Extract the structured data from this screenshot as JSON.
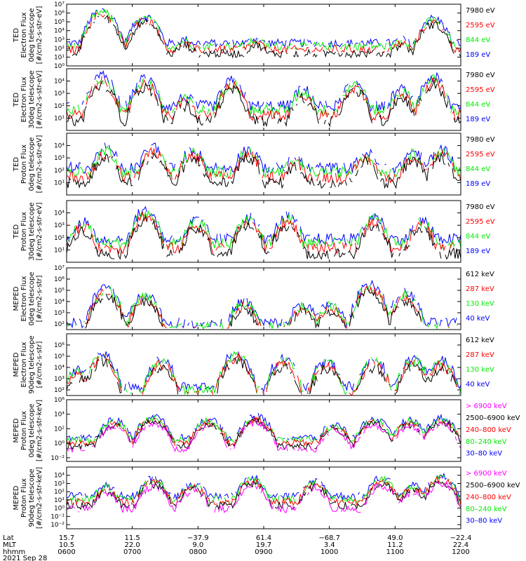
{
  "palette": {
    "blue": "#0000ff",
    "red": "#ff0000",
    "green": "#00ee00",
    "black": "#000000",
    "magenta": "#ff00ff"
  },
  "chart_data": {
    "type": "line",
    "date_label": "2021 Sep 28",
    "x_row_labels": [
      "Lat",
      "MLT",
      "hhmm"
    ],
    "x_ticks": [
      {
        "lat": "15.7",
        "mlt": "10.5",
        "hhmm": "0600"
      },
      {
        "lat": "11.5",
        "mlt": "22.0",
        "hhmm": "0700"
      },
      {
        "lat": "−37.9",
        "mlt": "9.0",
        "hhmm": "0800"
      },
      {
        "lat": "61.4",
        "mlt": "19.7",
        "hhmm": "0900"
      },
      {
        "lat": "−68.7",
        "mlt": "3.4",
        "hhmm": "1000"
      },
      {
        "lat": "49.0",
        "mlt": "11.2",
        "hhmm": "1100"
      },
      {
        "lat": "−22.4",
        "mlt": "22.4",
        "hhmm": "1200"
      }
    ],
    "panels": [
      {
        "ylabel": [
          "TED",
          "Electron Flux",
          "0deg telescope",
          "[#/cm2-s-str-eV]"
        ],
        "ylim": [
          0,
          7
        ],
        "yticks": [
          "10⁰",
          "10¹",
          "10²",
          "10³",
          "10⁴",
          "10⁵",
          "10⁶",
          "10⁷"
        ],
        "ytick_exps": [
          0,
          1,
          2,
          3,
          4,
          5,
          6,
          7
        ],
        "legend": [
          {
            "label": "7980 eV",
            "color": "#000000"
          },
          {
            "label": "2595 eV",
            "color": "#ff0000"
          },
          {
            "label": "844 eV",
            "color": "#00ee00"
          },
          {
            "label": "189 eV",
            "color": "#0000ff"
          }
        ],
        "baseline": 2.6,
        "peaks": [
          [
            0.09,
            6.3
          ],
          [
            0.2,
            5.6
          ],
          [
            0.3,
            3.0
          ],
          [
            0.48,
            3.1
          ],
          [
            0.68,
            2.4
          ],
          [
            0.85,
            3.0
          ],
          [
            0.93,
            5.4
          ]
        ]
      },
      {
        "ylabel": [
          "TED",
          "Electron Flux",
          "30deg telescope",
          "[#/cm2-s-str-eV]"
        ],
        "ylim": [
          0,
          5
        ],
        "yticks": [
          "10¹",
          "10²",
          "10³",
          "10⁴"
        ],
        "ytick_exps": [
          1,
          2,
          3,
          4
        ],
        "legend": [
          {
            "label": "7980 eV",
            "color": "#000000"
          },
          {
            "label": "2595 eV",
            "color": "#ff0000"
          },
          {
            "label": "844 eV",
            "color": "#00ee00"
          },
          {
            "label": "189 eV",
            "color": "#0000ff"
          }
        ],
        "baseline": 2.0,
        "peaks": [
          [
            0.09,
            4.4
          ],
          [
            0.2,
            4.2
          ],
          [
            0.3,
            2.7
          ],
          [
            0.42,
            4.0
          ],
          [
            0.6,
            3.3
          ],
          [
            0.73,
            3.9
          ],
          [
            0.85,
            3.3
          ],
          [
            0.93,
            4.3
          ]
        ]
      },
      {
        "ylabel": [
          "TED",
          "Proton Flux",
          "0deg telescope",
          "[#/cm2-s-str-eV]"
        ],
        "ylim": [
          0,
          5
        ],
        "yticks": [
          "10¹",
          "10²",
          "10³",
          "10⁴"
        ],
        "ytick_exps": [
          1,
          2,
          3,
          4
        ],
        "legend": [
          {
            "label": "7980 eV",
            "color": "#000000"
          },
          {
            "label": "2595 eV",
            "color": "#ff0000"
          },
          {
            "label": "844 eV",
            "color": "#00ee00"
          },
          {
            "label": "189 eV",
            "color": "#0000ff"
          }
        ],
        "baseline": 2.2,
        "peaks": [
          [
            0.1,
            3.8
          ],
          [
            0.22,
            3.9
          ],
          [
            0.32,
            3.6
          ],
          [
            0.46,
            3.7
          ],
          [
            0.58,
            3.0
          ],
          [
            0.76,
            3.4
          ],
          [
            0.88,
            3.5
          ],
          [
            0.95,
            3.7
          ]
        ]
      },
      {
        "ylabel": [
          "TED",
          "Proton Flux",
          "30deg telescope",
          "[#/cm2-s-str-eV]"
        ],
        "ylim": [
          0,
          5
        ],
        "yticks": [
          "10¹",
          "10²",
          "10³",
          "10⁴"
        ],
        "ytick_exps": [
          1,
          2,
          3,
          4
        ],
        "legend": [
          {
            "label": "7980 eV",
            "color": "#000000"
          },
          {
            "label": "2595 eV",
            "color": "#ff0000"
          },
          {
            "label": "844 eV",
            "color": "#00ee00"
          },
          {
            "label": "189 eV",
            "color": "#0000ff"
          }
        ],
        "baseline": 1.9,
        "peaks": [
          [
            0.04,
            3.3
          ],
          [
            0.2,
            4.2
          ],
          [
            0.33,
            3.4
          ],
          [
            0.46,
            3.7
          ],
          [
            0.56,
            3.7
          ],
          [
            0.78,
            3.7
          ],
          [
            0.9,
            3.4
          ]
        ]
      },
      {
        "ylabel": [
          "MEPED",
          "Electron Flux",
          "0deg telescope",
          "[#/cm2-s-str]"
        ],
        "ylim": [
          1.5,
          7
        ],
        "yticks": [
          "10²",
          "10³",
          "10⁴",
          "10⁵",
          "10⁶",
          "10⁷"
        ],
        "ytick_exps": [
          2,
          3,
          4,
          5,
          6,
          7
        ],
        "legend": [
          {
            "label": "612 keV",
            "color": "#000000"
          },
          {
            "label": "287 keV",
            "color": "#ff0000"
          },
          {
            "label": "130 keV",
            "color": "#00ee00"
          },
          {
            "label": "40 keV",
            "color": "#0000ff"
          }
        ],
        "baseline": 2.1,
        "peaks": [
          [
            0.1,
            5.3
          ],
          [
            0.2,
            4.7
          ],
          [
            0.45,
            4.0
          ],
          [
            0.6,
            3.8
          ],
          [
            0.67,
            3.8
          ],
          [
            0.77,
            5.6
          ],
          [
            0.86,
            4.8
          ]
        ]
      },
      {
        "ylabel": [
          "MEPED",
          "Electron Flux",
          "90deg telescope",
          "[#/cm2-s-str]"
        ],
        "ylim": [
          1.5,
          7
        ],
        "yticks": [
          "10²",
          "10³",
          "10⁴",
          "10⁵",
          "10⁶"
        ],
        "ytick_exps": [
          2,
          3,
          4,
          5,
          6
        ],
        "legend": [
          {
            "label": "612 keV",
            "color": "#000000"
          },
          {
            "label": "287 keV",
            "color": "#ff0000"
          },
          {
            "label": "130 keV",
            "color": "#00ee00"
          },
          {
            "label": "40 keV",
            "color": "#0000ff"
          }
        ],
        "baseline": 2.3,
        "peaks": [
          [
            0.03,
            3.8
          ],
          [
            0.09,
            5.2
          ],
          [
            0.24,
            4.7
          ],
          [
            0.43,
            5.3
          ],
          [
            0.55,
            4.8
          ],
          [
            0.66,
            4.6
          ],
          [
            0.78,
            4.7
          ],
          [
            0.88,
            4.8
          ],
          [
            0.95,
            4.6
          ]
        ]
      },
      {
        "ylabel": [
          "MEPED",
          "Proton Flux",
          "0deg telescope",
          "[#/cm2-s-str-keV]"
        ],
        "ylim": [
          -2.5,
          6
        ],
        "yticks": [
          "10⁻²",
          "10⁰",
          "10²",
          "10⁴",
          "10⁶"
        ],
        "ytick_exps": [
          -2,
          0,
          2,
          4,
          6
        ],
        "legend": [
          {
            "label": "> 6900 keV",
            "color": "#ff00ff"
          },
          {
            "label": "2500–6900 keV",
            "color": "#000000"
          },
          {
            "label": "240–800 keV",
            "color": "#ff0000"
          },
          {
            "label": "80–240 keV",
            "color": "#00ee00"
          },
          {
            "label": "30–80 keV",
            "color": "#0000ff"
          }
        ],
        "baseline": 0.8,
        "peaks": [
          [
            0.12,
            3.2
          ],
          [
            0.22,
            3.7
          ],
          [
            0.36,
            3.3
          ],
          [
            0.48,
            3.8
          ],
          [
            0.68,
            2.6
          ],
          [
            0.78,
            3.4
          ],
          [
            0.87,
            3.2
          ],
          [
            0.95,
            3.5
          ]
        ]
      },
      {
        "ylabel": [
          "MEPED",
          "Proton Flux",
          "90deg telescope",
          "[#/cm2-s-str-keV]"
        ],
        "ylim": [
          -2.5,
          5
        ],
        "yticks": [
          "10⁻²",
          "10⁻¹",
          "10⁰",
          "10¹",
          "10²",
          "10³",
          "10⁴"
        ],
        "ytick_exps": [
          -2,
          -1,
          0,
          1,
          2,
          3,
          4
        ],
        "legend": [
          {
            "label": "> 6900 keV",
            "color": "#ff00ff"
          },
          {
            "label": "2500–6900 keV",
            "color": "#000000"
          },
          {
            "label": "240–800 keV",
            "color": "#ff0000"
          },
          {
            "label": "80–240 keV",
            "color": "#00ee00"
          },
          {
            "label": "30–80 keV",
            "color": "#0000ff"
          }
        ],
        "baseline": 1.5,
        "peaks": [
          [
            0.1,
            2.7
          ],
          [
            0.22,
            3.6
          ],
          [
            0.32,
            3.0
          ],
          [
            0.47,
            3.7
          ],
          [
            0.63,
            3.3
          ],
          [
            0.8,
            3.7
          ],
          [
            0.88,
            2.8
          ],
          [
            0.95,
            3.9
          ]
        ]
      }
    ]
  }
}
